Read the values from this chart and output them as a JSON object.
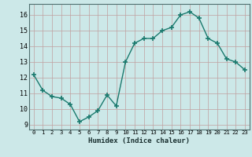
{
  "x": [
    0,
    1,
    2,
    3,
    4,
    5,
    6,
    7,
    8,
    9,
    10,
    11,
    12,
    13,
    14,
    15,
    16,
    17,
    18,
    19,
    20,
    21,
    22,
    23
  ],
  "y": [
    12.2,
    11.2,
    10.8,
    10.7,
    10.3,
    9.2,
    9.5,
    9.9,
    10.9,
    10.2,
    13.0,
    14.2,
    14.5,
    14.5,
    15.0,
    15.2,
    16.0,
    16.2,
    15.8,
    14.5,
    14.2,
    13.2,
    13.0,
    12.5
  ],
  "xlabel": "Humidex (Indice chaleur)",
  "ylim": [
    8.7,
    16.7
  ],
  "xlim": [
    -0.5,
    23.5
  ],
  "yticks": [
    9,
    10,
    11,
    12,
    13,
    14,
    15,
    16
  ],
  "xtick_labels": [
    "0",
    "1",
    "2",
    "3",
    "4",
    "5",
    "6",
    "7",
    "8",
    "9",
    "10",
    "11",
    "12",
    "13",
    "14",
    "15",
    "16",
    "17",
    "18",
    "19",
    "20",
    "21",
    "22",
    "23"
  ],
  "line_color": "#1a7a6e",
  "marker_color": "#1a7a6e",
  "bg_color": "#cce8e8",
  "grid_color": "#c0a0a0",
  "plot_bg_color": "#cce8e8"
}
